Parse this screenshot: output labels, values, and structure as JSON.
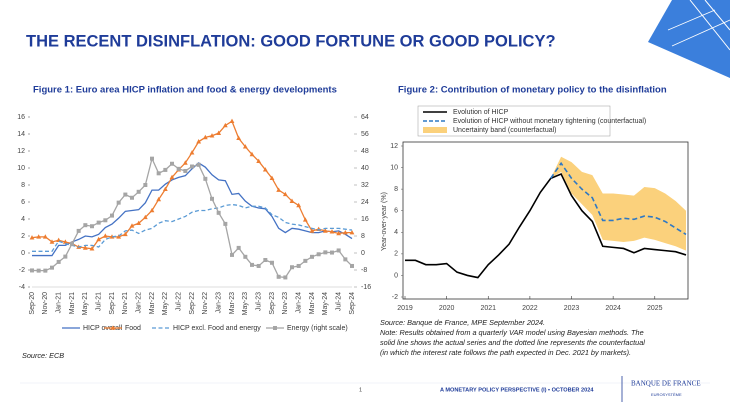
{
  "header": {
    "title": "THE RECENT DISINFLATION: GOOD FORTUNE OR GOOD POLICY?"
  },
  "chart_data": [
    {
      "type": "line",
      "title": "Figure 1: Euro area HICP inflation and food & energy developments",
      "categories": [
        "Sep-20",
        null,
        "Nov-20",
        null,
        "Jan-21",
        null,
        "Mar-21",
        null,
        "May-21",
        null,
        "Jul-21",
        null,
        "Sep-21",
        null,
        "Nov-21",
        null,
        "Jan-22",
        null,
        "Mar-22",
        null,
        "May-22",
        null,
        "Jul-22",
        null,
        "Sep-22",
        null,
        "Nov-22",
        null,
        "Jan-23",
        null,
        "Mar-23",
        null,
        "May-23",
        null,
        "Jul-23",
        null,
        "Sep-23",
        null,
        "Nov-23",
        null,
        "Jan-24",
        null,
        "Mar-24",
        null,
        "May-24",
        null,
        "Jul-24",
        null,
        "Sep-24"
      ],
      "series": [
        {
          "name": "HICP overall",
          "color": "#4472c4",
          "values": [
            -0.3,
            -0.3,
            -0.3,
            -0.3,
            0.9,
            0.9,
            1.3,
            1.6,
            2.0,
            1.9,
            2.2,
            3.0,
            3.4,
            4.1,
            4.9,
            5.0,
            5.1,
            5.9,
            7.4,
            7.4,
            8.1,
            8.6,
            8.9,
            9.1,
            9.9,
            10.6,
            10.1,
            9.2,
            8.6,
            8.5,
            6.9,
            7.0,
            6.1,
            5.5,
            5.3,
            5.2,
            4.3,
            2.9,
            2.4,
            2.9,
            2.8,
            2.6,
            2.4,
            2.4,
            2.6,
            2.5,
            2.6,
            2.2,
            1.7
          ]
        },
        {
          "name": "Food",
          "color": "#ed7d31",
          "marker": "triangle",
          "values": [
            1.8,
            1.9,
            1.9,
            1.3,
            1.5,
            1.3,
            1.1,
            0.7,
            0.6,
            0.5,
            1.6,
            2.0,
            1.9,
            1.9,
            2.2,
            3.2,
            3.5,
            4.2,
            5.0,
            6.3,
            7.5,
            8.9,
            9.8,
            10.6,
            11.8,
            13.1,
            13.6,
            13.8,
            14.1,
            15.0,
            15.5,
            13.5,
            12.5,
            11.6,
            10.8,
            9.8,
            8.8,
            7.4,
            6.9,
            6.1,
            5.6,
            3.9,
            2.6,
            2.8,
            2.6,
            2.5,
            2.3,
            2.4,
            2.4
          ]
        },
        {
          "name": "HICP excl. Food and energy",
          "color": "#5b9bd5",
          "dash": true,
          "values": [
            0.2,
            0.2,
            0.2,
            0.2,
            1.4,
            1.1,
            0.9,
            0.7,
            0.9,
            0.9,
            0.7,
            1.6,
            1.9,
            2.0,
            2.6,
            2.7,
            2.3,
            2.7,
            2.9,
            3.5,
            3.8,
            3.7,
            4.0,
            4.3,
            4.8,
            5.0,
            5.0,
            5.2,
            5.3,
            5.6,
            5.7,
            5.6,
            5.3,
            5.5,
            5.5,
            5.3,
            4.5,
            4.2,
            3.6,
            3.4,
            3.3,
            3.1,
            2.9,
            2.7,
            2.9,
            2.9,
            2.9,
            2.8,
            2.7
          ]
        },
        {
          "name": "Energy (right scale)",
          "color": "#a5a5a5",
          "marker": "square",
          "axis": "y2",
          "values": [
            -8.2,
            -8.3,
            -8.3,
            -6.9,
            -4.2,
            -1.7,
            4.3,
            10.4,
            13.1,
            12.6,
            14.3,
            15.4,
            17.6,
            23.7,
            27.5,
            26.0,
            28.8,
            32.0,
            44.4,
            37.5,
            39.1,
            42.0,
            39.6,
            38.6,
            40.7,
            41.5,
            34.9,
            25.5,
            18.9,
            13.7,
            -0.9,
            2.4,
            -1.8,
            -5.6,
            -6.1,
            -3.3,
            -4.6,
            -11.2,
            -11.5,
            -6.7,
            -6.1,
            -3.7,
            -1.8,
            -0.6,
            0.3,
            0.2,
            1.2,
            -3.0,
            -6.1
          ]
        }
      ],
      "ylim": [
        -4,
        16
      ],
      "yticks": [
        -4,
        -2,
        0,
        2,
        4,
        6,
        8,
        10,
        12,
        14,
        16
      ],
      "y2lim": [
        -16,
        64
      ],
      "y2ticks": [
        -16,
        -8,
        0,
        8,
        16,
        24,
        32,
        40,
        48,
        56,
        64
      ],
      "grid": false,
      "legend": "bottom",
      "source": "Source: ECB"
    },
    {
      "type": "line",
      "title": "Figure 2: Contribution of monetary policy to the disinflation",
      "y_label": "Year-over-year (%)",
      "x": [
        2019,
        2019.25,
        2019.5,
        2019.75,
        2020,
        2020.25,
        2020.5,
        2020.75,
        2021,
        2021.25,
        2021.5,
        2021.75,
        2022,
        2022.25,
        2022.5,
        2022.75,
        2023,
        2023.25,
        2023.5,
        2023.75,
        2024,
        2024.25,
        2024.5,
        2024.75,
        2025,
        2025.25,
        2025.5,
        2025.75
      ],
      "series": [
        {
          "name": "Evolution of HICP",
          "color": "#000000",
          "values": [
            1.4,
            1.4,
            1.0,
            1.0,
            1.1,
            0.3,
            0.0,
            -0.2,
            1.0,
            1.9,
            2.9,
            4.5,
            6.0,
            7.7,
            9.0,
            9.4,
            7.4,
            6.0,
            5.0,
            2.7,
            2.6,
            2.5,
            2.1,
            2.5,
            2.4,
            2.3,
            2.2,
            1.9
          ]
        },
        {
          "name": "Evolution of HICP without monetary tightening (counterfactual)",
          "color": "#2e78c4",
          "dash": true,
          "values": [
            null,
            null,
            null,
            null,
            null,
            null,
            null,
            null,
            null,
            null,
            null,
            null,
            null,
            null,
            9.0,
            10.4,
            9.0,
            8.0,
            7.2,
            5.1,
            5.1,
            5.3,
            5.2,
            5.5,
            5.4,
            5.0,
            4.4,
            3.8
          ]
        }
      ],
      "band": {
        "name": "Uncertainty band (counterfactual)",
        "color": "#fbd17c",
        "lower": [
          null,
          null,
          null,
          null,
          null,
          null,
          null,
          null,
          null,
          null,
          null,
          null,
          null,
          null,
          9.0,
          9.6,
          7.6,
          6.6,
          5.6,
          3.3,
          3.2,
          3.1,
          3.2,
          3.5,
          3.3,
          3.0,
          2.7,
          2.3
        ],
        "upper": [
          null,
          null,
          null,
          null,
          null,
          null,
          null,
          null,
          null,
          null,
          null,
          null,
          null,
          null,
          9.0,
          11.0,
          10.5,
          9.6,
          9.3,
          7.6,
          7.6,
          7.5,
          7.4,
          8.2,
          8.1,
          7.6,
          6.9,
          6.0
        ]
      },
      "xlim": [
        2019,
        2025.75
      ],
      "xticks": [
        2019,
        2020,
        2021,
        2022,
        2023,
        2024,
        2025
      ],
      "ylim": [
        -2,
        12
      ],
      "yticks": [
        -2,
        0,
        2,
        4,
        6,
        8,
        10,
        12
      ],
      "grid": false,
      "legend": "top-left",
      "source": "Source: Banque de France, MPE September 2024.",
      "note": [
        "Note: Results obtained from a quarterly VAR model using Bayesian methods. The",
        "solid line shows the actual series and the dotted line represents the counterfactual",
        "(in which the interest rate follows the path expected in Dec. 2021 by markets)."
      ]
    }
  ],
  "footer": {
    "page": "1",
    "text": "A MONETARY POLICY PERSPECTIVE (I) • OCTOBER 2024",
    "logo": "BANQUE DE FRANCE",
    "logo_sub": "EUROSYSTÈME"
  }
}
